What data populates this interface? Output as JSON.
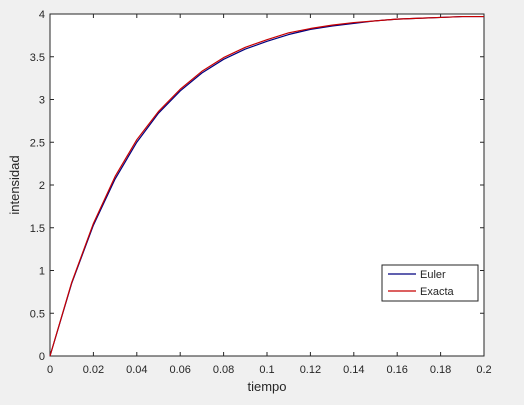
{
  "chart_data": {
    "type": "line",
    "title": "",
    "xlabel": "tiempo",
    "ylabel": "intensidad",
    "xlim": [
      0,
      0.2
    ],
    "ylim": [
      0,
      4
    ],
    "xticks": [
      0,
      0.02,
      0.04,
      0.06,
      0.08,
      0.1,
      0.12,
      0.14,
      0.16,
      0.18,
      0.2
    ],
    "xtick_labels": [
      "0",
      "0.02",
      "0.04",
      "0.06",
      "0.08",
      "0.1",
      "0.12",
      "0.14",
      "0.16",
      "0.18",
      "0.2"
    ],
    "yticks": [
      0,
      0.5,
      1,
      1.5,
      2,
      2.5,
      3,
      3.5,
      4
    ],
    "ytick_labels": [
      "0",
      "0.5",
      "1",
      "1.5",
      "2",
      "2.5",
      "3",
      "3.5",
      "4"
    ],
    "grid": false,
    "legend_position": "lower-right",
    "x": [
      0,
      0.01,
      0.02,
      0.03,
      0.04,
      0.05,
      0.06,
      0.07,
      0.08,
      0.09,
      0.1,
      0.11,
      0.12,
      0.13,
      0.14,
      0.15,
      0.16,
      0.17,
      0.18,
      0.19,
      0.2
    ],
    "series": [
      {
        "name": "Euler",
        "color": "#00007f",
        "values": [
          0,
          0.85,
          1.53,
          2.07,
          2.5,
          2.84,
          3.1,
          3.31,
          3.47,
          3.59,
          3.68,
          3.76,
          3.82,
          3.86,
          3.89,
          3.92,
          3.94,
          3.95,
          3.96,
          3.97,
          3.97
        ]
      },
      {
        "name": "Exacta",
        "color": "#c80000",
        "values": [
          0,
          0.86,
          1.55,
          2.1,
          2.53,
          2.86,
          3.12,
          3.33,
          3.49,
          3.61,
          3.7,
          3.78,
          3.83,
          3.87,
          3.9,
          3.92,
          3.94,
          3.95,
          3.96,
          3.97,
          3.97
        ]
      }
    ]
  }
}
